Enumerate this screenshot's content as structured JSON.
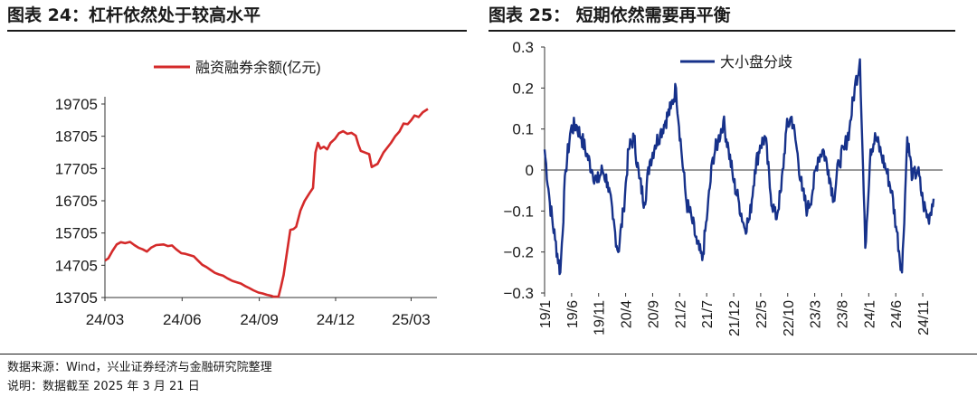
{
  "figures": [
    {
      "title": "图表 24：杠杆依然处于较高水平"
    },
    {
      "title": "图表 25：  短期依然需要再平衡"
    }
  ],
  "footer": {
    "source": "数据来源：Wind，兴业证券经济与金融研究院整理",
    "note": "说明：数据截至 2025 年 3 月 21 日"
  },
  "chart_data": [
    {
      "type": "line",
      "series": [
        {
          "name": "融资融券余额(亿元)",
          "color": "#d42a2a"
        }
      ],
      "ylim": [
        13705,
        19705
      ],
      "yticks": [
        13705,
        14705,
        15705,
        16705,
        17705,
        18705,
        19705
      ],
      "xlim": [
        "2024-03-01",
        "2025-03-21"
      ],
      "xticks": [
        {
          "label": "24/03",
          "date": "2024-03-01"
        },
        {
          "label": "24/06",
          "date": "2024-06-01"
        },
        {
          "label": "24/09",
          "date": "2024-09-01"
        },
        {
          "label": "24/12",
          "date": "2024-12-01"
        },
        {
          "label": "25/03",
          "date": "2025-03-01"
        }
      ],
      "points": [
        [
          "2024-03-01",
          14850
        ],
        [
          "2024-03-05",
          14920
        ],
        [
          "2024-03-10",
          15150
        ],
        [
          "2024-03-15",
          15350
        ],
        [
          "2024-03-20",
          15420
        ],
        [
          "2024-03-25",
          15390
        ],
        [
          "2024-03-31",
          15430
        ],
        [
          "2024-04-05",
          15330
        ],
        [
          "2024-04-10",
          15250
        ],
        [
          "2024-04-15",
          15200
        ],
        [
          "2024-04-20",
          15130
        ],
        [
          "2024-04-25",
          15250
        ],
        [
          "2024-05-01",
          15330
        ],
        [
          "2024-05-10",
          15350
        ],
        [
          "2024-05-15",
          15300
        ],
        [
          "2024-05-20",
          15320
        ],
        [
          "2024-05-25",
          15200
        ],
        [
          "2024-05-31",
          15080
        ],
        [
          "2024-06-05",
          15060
        ],
        [
          "2024-06-10",
          15020
        ],
        [
          "2024-06-15",
          14980
        ],
        [
          "2024-06-20",
          14850
        ],
        [
          "2024-06-25",
          14720
        ],
        [
          "2024-06-30",
          14650
        ],
        [
          "2024-07-05",
          14560
        ],
        [
          "2024-07-10",
          14470
        ],
        [
          "2024-07-15",
          14420
        ],
        [
          "2024-07-20",
          14380
        ],
        [
          "2024-07-25",
          14300
        ],
        [
          "2024-07-31",
          14220
        ],
        [
          "2024-08-05",
          14180
        ],
        [
          "2024-08-10",
          14140
        ],
        [
          "2024-08-15",
          14060
        ],
        [
          "2024-08-20",
          14000
        ],
        [
          "2024-08-25",
          13930
        ],
        [
          "2024-08-31",
          13860
        ],
        [
          "2024-09-05",
          13830
        ],
        [
          "2024-09-10",
          13790
        ],
        [
          "2024-09-15",
          13760
        ],
        [
          "2024-09-18",
          13730
        ],
        [
          "2024-09-24",
          13735
        ],
        [
          "2024-09-27",
          14050
        ],
        [
          "2024-09-30",
          14400
        ],
        [
          "2024-10-08",
          15800
        ],
        [
          "2024-10-12",
          15830
        ],
        [
          "2024-10-15",
          15900
        ],
        [
          "2024-10-20",
          16400
        ],
        [
          "2024-10-25",
          16700
        ],
        [
          "2024-10-31",
          16950
        ],
        [
          "2024-11-04",
          17100
        ],
        [
          "2024-11-07",
          18200
        ],
        [
          "2024-11-10",
          18500
        ],
        [
          "2024-11-13",
          18320
        ],
        [
          "2024-11-17",
          18380
        ],
        [
          "2024-11-21",
          18300
        ],
        [
          "2024-11-25",
          18500
        ],
        [
          "2024-11-30",
          18620
        ],
        [
          "2024-12-05",
          18800
        ],
        [
          "2024-12-10",
          18860
        ],
        [
          "2024-12-15",
          18780
        ],
        [
          "2024-12-20",
          18810
        ],
        [
          "2024-12-25",
          18720
        ],
        [
          "2024-12-28",
          18460
        ],
        [
          "2024-12-31",
          18250
        ],
        [
          "2025-01-05",
          18200
        ],
        [
          "2025-01-10",
          18150
        ],
        [
          "2025-01-13",
          17750
        ],
        [
          "2025-01-20",
          17850
        ],
        [
          "2025-01-27",
          18200
        ],
        [
          "2025-02-05",
          18500
        ],
        [
          "2025-02-10",
          18700
        ],
        [
          "2025-02-15",
          18850
        ],
        [
          "2025-02-20",
          19100
        ],
        [
          "2025-02-25",
          19080
        ],
        [
          "2025-03-01",
          19200
        ],
        [
          "2025-03-05",
          19350
        ],
        [
          "2025-03-10",
          19300
        ],
        [
          "2025-03-15",
          19450
        ],
        [
          "2025-03-21",
          19550
        ]
      ]
    },
    {
      "type": "line",
      "series": [
        {
          "name": "大小盘分歧",
          "color": "#16318a"
        }
      ],
      "ylim": [
        -0.3,
        0.3
      ],
      "yticks": [
        -0.3,
        -0.2,
        -0.1,
        0,
        0.1,
        0.2,
        0.3
      ],
      "ytick_labels": [
        "−0.3",
        "−0.2",
        "−0.1",
        "0",
        "0.1",
        "0.2",
        "0.3"
      ],
      "xlim": [
        "2019-01",
        "2025-03"
      ],
      "xticks": [
        "19/1",
        "19/6",
        "19/11",
        "20/4",
        "20/9",
        "21/2",
        "21/7",
        "21/12",
        "22/5",
        "22/10",
        "23/3",
        "23/8",
        "24/1",
        "24/6",
        "24/11"
      ],
      "points": [
        [
          "2019-01",
          0.05
        ],
        [
          "2019-02",
          -0.08
        ],
        [
          "2019-03",
          -0.17
        ],
        [
          "2019-04",
          -0.25
        ],
        [
          "2019-05",
          0.0
        ],
        [
          "2019-06",
          0.1
        ],
        [
          "2019-07",
          0.11
        ],
        [
          "2019-08",
          0.08
        ],
        [
          "2019-09",
          0.04
        ],
        [
          "2019-10",
          0.0
        ],
        [
          "2019-11",
          -0.03
        ],
        [
          "2019-12",
          0.0
        ],
        [
          "2020-01",
          -0.03
        ],
        [
          "2020-02",
          -0.12
        ],
        [
          "2020-03",
          -0.2
        ],
        [
          "2020-04",
          -0.1
        ],
        [
          "2020-05",
          0.05
        ],
        [
          "2020-06",
          0.08
        ],
        [
          "2020-07",
          -0.02
        ],
        [
          "2020-08",
          -0.08
        ],
        [
          "2020-09",
          0.02
        ],
        [
          "2020-10",
          0.06
        ],
        [
          "2020-11",
          0.09
        ],
        [
          "2020-12",
          0.12
        ],
        [
          "2021-01",
          0.15
        ],
        [
          "2021-02",
          0.2
        ],
        [
          "2021-03",
          0.05
        ],
        [
          "2021-04",
          -0.08
        ],
        [
          "2021-05",
          -0.12
        ],
        [
          "2021-06",
          -0.18
        ],
        [
          "2021-07",
          -0.22
        ],
        [
          "2021-08",
          -0.1
        ],
        [
          "2021-09",
          0.03
        ],
        [
          "2021-10",
          0.07
        ],
        [
          "2021-11",
          0.12
        ],
        [
          "2021-12",
          0.05
        ],
        [
          "2022-01",
          -0.03
        ],
        [
          "2022-02",
          -0.08
        ],
        [
          "2022-03",
          -0.14
        ],
        [
          "2022-04",
          -0.12
        ],
        [
          "2022-05",
          0.0
        ],
        [
          "2022-06",
          0.06
        ],
        [
          "2022-07",
          0.08
        ],
        [
          "2022-08",
          -0.06
        ],
        [
          "2022-09",
          -0.12
        ],
        [
          "2022-10",
          -0.05
        ],
        [
          "2022-11",
          0.1
        ],
        [
          "2022-12",
          0.13
        ],
        [
          "2023-01",
          0.05
        ],
        [
          "2023-02",
          -0.05
        ],
        [
          "2023-03",
          -0.1
        ],
        [
          "2023-04",
          -0.05
        ],
        [
          "2023-05",
          0.03
        ],
        [
          "2023-06",
          0.05
        ],
        [
          "2023-07",
          0.0
        ],
        [
          "2023-08",
          -0.07
        ],
        [
          "2023-09",
          0.02
        ],
        [
          "2023-10",
          0.05
        ],
        [
          "2023-11",
          0.1
        ],
        [
          "2023-12",
          0.2
        ],
        [
          "2024-01",
          0.27
        ],
        [
          "2024-02",
          -0.19
        ],
        [
          "2024-03",
          0.05
        ],
        [
          "2024-04",
          0.08
        ],
        [
          "2024-05",
          0.04
        ],
        [
          "2024-06",
          0.0
        ],
        [
          "2024-07",
          -0.05
        ],
        [
          "2024-08",
          -0.15
        ],
        [
          "2024-09",
          -0.25
        ],
        [
          "2024-10",
          0.08
        ],
        [
          "2024-11",
          -0.02
        ],
        [
          "2024-12",
          0.0
        ],
        [
          "2025-01",
          -0.08
        ],
        [
          "2025-02",
          -0.12
        ],
        [
          "2025-03",
          -0.07
        ]
      ]
    }
  ]
}
